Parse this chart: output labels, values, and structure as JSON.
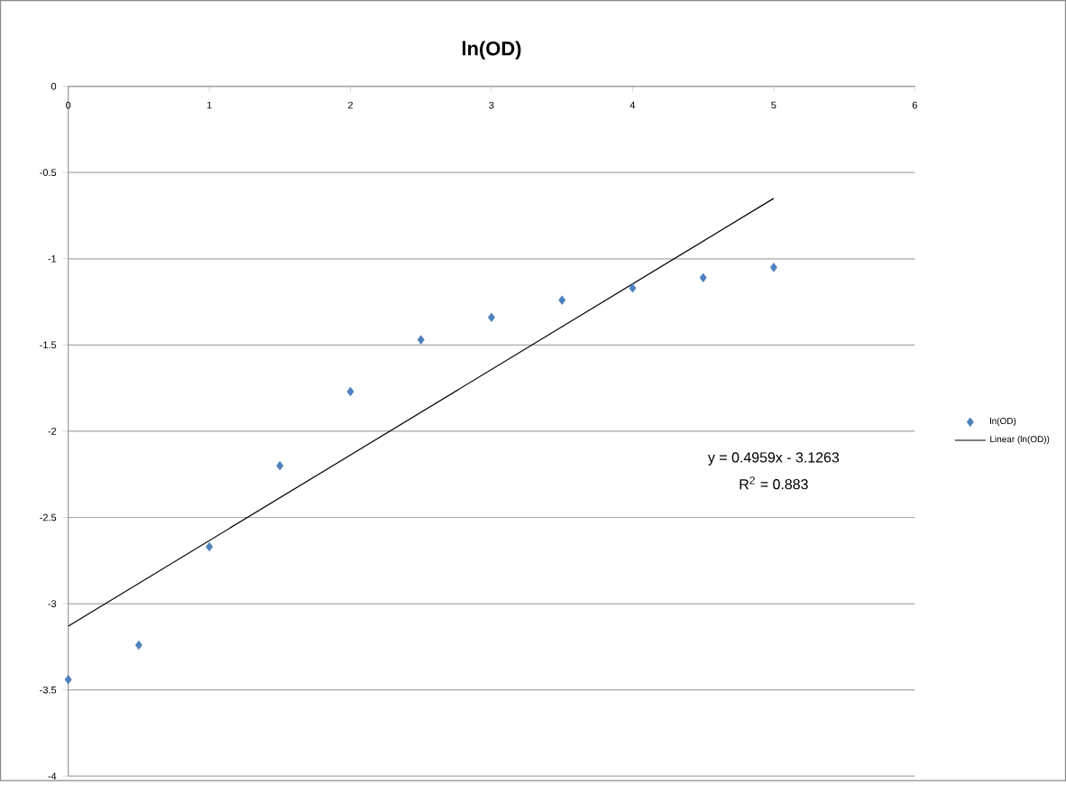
{
  "chart_data": {
    "type": "scatter",
    "title": "ln(OD)",
    "xlim": [
      0,
      6
    ],
    "xticks": [
      0,
      1,
      2,
      3,
      4,
      5,
      6
    ],
    "ylim": [
      -4,
      0
    ],
    "yticks": [
      0,
      -0.5,
      -1,
      -1.5,
      -2,
      -2.5,
      -3,
      -3.5,
      -4
    ],
    "grid": "y",
    "legend": "right",
    "series": [
      {
        "name": "ln(OD)",
        "marker": "diamond",
        "color": "#4f81bd",
        "x": [
          0,
          0.5,
          1,
          1.5,
          2,
          2.5,
          3,
          3.5,
          4,
          4.5,
          5
        ],
        "values": [
          -3.44,
          -3.24,
          -2.67,
          -2.2,
          -1.77,
          -1.47,
          -1.34,
          -1.24,
          -1.17,
          -1.11,
          -1.05
        ]
      },
      {
        "name": "Linear (ln(OD))",
        "type": "line",
        "color": "#000000",
        "x": [
          0,
          5
        ],
        "values": [
          -3.13,
          -0.65
        ]
      }
    ],
    "annotations": [
      "y = 0.4959x - 3.1263",
      "R$^{2}$ = 0.883"
    ]
  }
}
